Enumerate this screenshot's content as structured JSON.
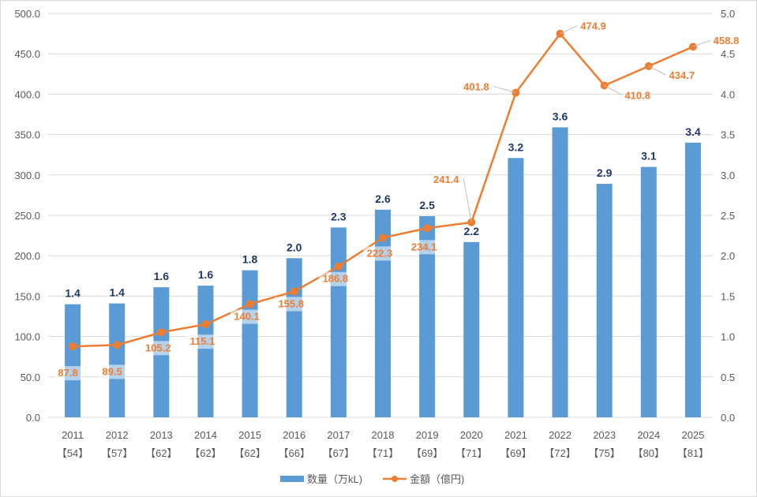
{
  "chart_data": {
    "type": "bar+line",
    "categories": [
      "2011",
      "2012",
      "2013",
      "2014",
      "2015",
      "2016",
      "2017",
      "2018",
      "2019",
      "2020",
      "2021",
      "2022",
      "2023",
      "2024",
      "2025"
    ],
    "category_sublabels": [
      "【54】",
      "【57】",
      "【62】",
      "【62】",
      "【62】",
      "【66】",
      "【67】",
      "【71】",
      "【69】",
      "【71】",
      "【69】",
      "【72】",
      "【75】",
      "【80】",
      "【81】"
    ],
    "series": [
      {
        "name": "数量（万kL)",
        "type": "bar",
        "axis": "right",
        "color": "#5b9bd5",
        "values": [
          1.4,
          1.41,
          1.61,
          1.63,
          1.82,
          1.97,
          2.35,
          2.57,
          2.49,
          2.17,
          3.21,
          3.59,
          2.89,
          3.1,
          3.4
        ],
        "labels": [
          "1.4",
          "1.4",
          "1.6",
          "1.6",
          "1.8",
          "2.0",
          "2.3",
          "2.6",
          "2.5",
          "2.2",
          "3.2",
          "3.6",
          "2.9",
          "3.1",
          "3.4"
        ]
      },
      {
        "name": "金額（億円)",
        "type": "line",
        "axis": "left",
        "color": "#ed7d31",
        "values": [
          87.8,
          89.5,
          105.2,
          115.1,
          140.1,
          155.8,
          186.8,
          222.3,
          234.1,
          241.4,
          401.8,
          474.9,
          410.8,
          434.7,
          458.8
        ],
        "labels": [
          "87.8",
          "89.5",
          "105.2",
          "115.1",
          "140.1",
          "155.8",
          "186.8",
          "222.3",
          "234.1",
          "241.4",
          "401.8",
          "474.9",
          "410.8",
          "434.7",
          "458.8"
        ]
      }
    ],
    "left_axis": {
      "range": [
        0,
        500
      ],
      "ticks": [
        "0.0",
        "50.0",
        "100.0",
        "150.0",
        "200.0",
        "250.0",
        "300.0",
        "350.0",
        "400.0",
        "450.0",
        "500.0"
      ]
    },
    "right_axis": {
      "range": [
        0,
        5
      ],
      "ticks": [
        "0.0",
        "0.5",
        "1.0",
        "1.5",
        "2.0",
        "2.5",
        "3.0",
        "3.5",
        "4.0",
        "4.5",
        "5.0"
      ]
    },
    "grid": true,
    "legend_position": "bottom"
  }
}
